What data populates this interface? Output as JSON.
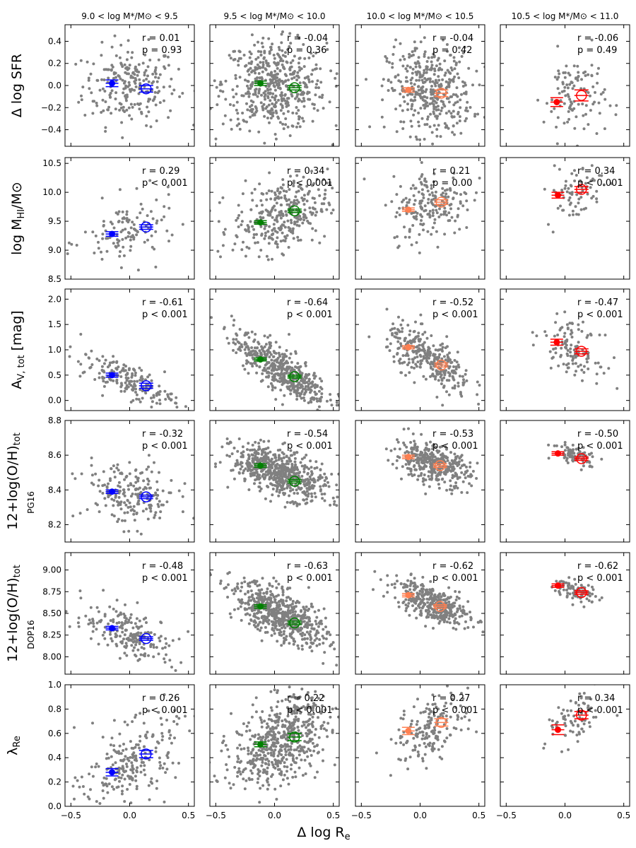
{
  "chart_data": {
    "type": "scatter",
    "xlabel": "Δ log R",
    "xlabel_sub": "e",
    "xlim": [
      -0.55,
      0.55
    ],
    "xticks": [
      -0.5,
      0.0,
      0.5
    ],
    "xtick_labels": [
      "−0.5",
      "0.0",
      "0.5"
    ],
    "column_titles": [
      "9.0 < log M*/M⊙ < 9.5",
      "9.5 < log M*/M⊙ < 10.0",
      "10.0 < log M*/M⊙ < 10.5",
      "10.5 < log M*/M⊙ < 11.0"
    ],
    "column_colors": [
      "#0000ff",
      "#008000",
      "#ff7f50",
      "#ff0000"
    ],
    "point_color": "#808080",
    "rows": [
      {
        "ylabel": "Δ log SFR",
        "ylim": [
          -0.55,
          0.55
        ],
        "yticks": [
          -0.4,
          -0.2,
          0.0,
          0.2,
          0.4
        ],
        "ytick_labels": [
          "−0.4",
          "−0.2",
          "0.0",
          "0.2",
          "0.4"
        ],
        "panels": [
          {
            "r": "r = 0.01",
            "p": "p = 0.93",
            "n": 230,
            "slope": 0.0,
            "cx": 0.0,
            "cy": 0.0,
            "xsd": 0.2,
            "ysd": 0.18,
            "filled": [
              -0.15,
              0.02
            ],
            "open": [
              0.14,
              -0.03
            ],
            "err": [
              0.03,
              0.03
            ]
          },
          {
            "r": "r = -0.04",
            "p": "p = 0.36",
            "n": 500,
            "slope": -0.05,
            "cx": 0.0,
            "cy": 0.0,
            "xsd": 0.22,
            "ysd": 0.2,
            "filled": [
              -0.12,
              0.02
            ],
            "open": [
              0.17,
              -0.02
            ],
            "err": [
              0.02,
              0.02
            ]
          },
          {
            "r": "r = -0.04",
            "p": "p = 0.42",
            "n": 400,
            "slope": -0.05,
            "cx": 0.08,
            "cy": -0.05,
            "xsd": 0.18,
            "ysd": 0.2,
            "filled": [
              -0.1,
              -0.04
            ],
            "open": [
              0.18,
              -0.07
            ],
            "err": [
              0.02,
              0.03
            ]
          },
          {
            "r": "r = -0.06",
            "p": "p = 0.49",
            "n": 110,
            "slope": -0.05,
            "cx": 0.08,
            "cy": -0.1,
            "xsd": 0.13,
            "ysd": 0.2,
            "filled": [
              -0.07,
              -0.15
            ],
            "open": [
              0.14,
              -0.09
            ],
            "err": [
              0.04,
              0.05
            ]
          }
        ]
      },
      {
        "ylabel": "log M",
        "ylabel_sub": "HI",
        "ylabel_suffix": "/M⊙",
        "ylim": [
          8.5,
          10.6
        ],
        "yticks": [
          8.5,
          9.0,
          9.5,
          10.0,
          10.5
        ],
        "ytick_labels": [
          "8.5",
          "9.0",
          "9.5",
          "10.0",
          "10.5"
        ],
        "panels": [
          {
            "r": "r = 0.29",
            "p": "p < 0.001",
            "n": 120,
            "slope": 0.4,
            "cx": 0.0,
            "cy": 9.32,
            "xsd": 0.2,
            "ysd": 0.28,
            "filled": [
              -0.15,
              9.28
            ],
            "open": [
              0.14,
              9.4
            ],
            "err": [
              0.04,
              0.04
            ]
          },
          {
            "r": "r = 0.34",
            "p": "p < 0.001",
            "n": 330,
            "slope": 0.5,
            "cx": 0.05,
            "cy": 9.6,
            "xsd": 0.2,
            "ysd": 0.3,
            "filled": [
              -0.12,
              9.48
            ],
            "open": [
              0.17,
              9.68
            ],
            "err": [
              0.03,
              0.03
            ]
          },
          {
            "r": "r = 0.21",
            "p": "p = 0.00",
            "n": 200,
            "slope": 0.35,
            "cx": 0.1,
            "cy": 9.8,
            "xsd": 0.17,
            "ysd": 0.3,
            "filled": [
              -0.1,
              9.7
            ],
            "open": [
              0.18,
              9.83
            ],
            "err": [
              0.03,
              0.04
            ]
          },
          {
            "r": "r = 0.34",
            "p": "p < 0.001",
            "n": 75,
            "slope": 0.5,
            "cx": 0.08,
            "cy": 10.0,
            "xsd": 0.12,
            "ysd": 0.25,
            "filled": [
              -0.06,
              9.95
            ],
            "open": [
              0.14,
              10.05
            ],
            "err": [
              0.05,
              0.05
            ]
          }
        ]
      },
      {
        "ylabel": "A",
        "ylabel_sub": "V, tot",
        "ylabel_suffix": " [mag]",
        "ylim": [
          -0.2,
          2.2
        ],
        "yticks": [
          0.0,
          0.5,
          1.0,
          1.5,
          2.0
        ],
        "ytick_labels": [
          "0.0",
          "0.5",
          "1.0",
          "1.5",
          "2.0"
        ],
        "panels": [
          {
            "r": "r = -0.61",
            "p": "p < 0.001",
            "n": 180,
            "slope": -0.85,
            "cx": -0.02,
            "cy": 0.4,
            "xsd": 0.2,
            "ysd": 0.16,
            "filled": [
              -0.15,
              0.5
            ],
            "open": [
              0.14,
              0.29
            ],
            "err": [
              0.04,
              0.05
            ]
          },
          {
            "r": "r = -0.64",
            "p": "p < 0.001",
            "n": 500,
            "slope": -1.4,
            "cx": 0.05,
            "cy": 0.62,
            "xsd": 0.2,
            "ysd": 0.22,
            "filled": [
              -0.12,
              0.81
            ],
            "open": [
              0.17,
              0.47
            ],
            "err": [
              0.03,
              0.03
            ]
          },
          {
            "r": "r = -0.52",
            "p": "p < 0.001",
            "n": 320,
            "slope": -1.3,
            "cx": 0.08,
            "cy": 0.8,
            "xsd": 0.18,
            "ysd": 0.24,
            "filled": [
              -0.1,
              1.05
            ],
            "open": [
              0.18,
              0.7
            ],
            "err": [
              0.03,
              0.04
            ]
          },
          {
            "r": "r = -0.47",
            "p": "p < 0.001",
            "n": 120,
            "slope": -1.0,
            "cx": 0.06,
            "cy": 1.05,
            "xsd": 0.12,
            "ysd": 0.25,
            "filled": [
              -0.07,
              1.15
            ],
            "open": [
              0.14,
              0.97
            ],
            "err": [
              0.06,
              0.05
            ]
          }
        ]
      },
      {
        "ylabel": "12+log(O/H)",
        "ylabel_sub": "tot",
        "ylabel2": "PG16",
        "ylim": [
          8.1,
          8.8
        ],
        "yticks": [
          8.2,
          8.4,
          8.6,
          8.8
        ],
        "ytick_labels": [
          "8.2",
          "8.4",
          "8.6",
          "8.8"
        ],
        "panels": [
          {
            "r": "r = -0.32",
            "p": "p < 0.001",
            "n": 200,
            "slope": -0.12,
            "cx": 0.0,
            "cy": 8.37,
            "xsd": 0.2,
            "ysd": 0.09,
            "filled": [
              -0.15,
              8.39
            ],
            "open": [
              0.14,
              8.36
            ],
            "err": [
              0.01,
              0.01
            ]
          },
          {
            "r": "r = -0.54",
            "p": "p < 0.001",
            "n": 600,
            "slope": -0.2,
            "cx": 0.05,
            "cy": 8.5,
            "xsd": 0.2,
            "ysd": 0.065,
            "filled": [
              -0.12,
              8.54
            ],
            "open": [
              0.17,
              8.45
            ],
            "err": [
              0.01,
              0.01
            ]
          },
          {
            "r": "r = -0.53",
            "p": "p < 0.001",
            "n": 380,
            "slope": -0.18,
            "cx": 0.1,
            "cy": 8.55,
            "xsd": 0.16,
            "ysd": 0.055,
            "filled": [
              -0.1,
              8.59
            ],
            "open": [
              0.17,
              8.54
            ],
            "err": [
              0.01,
              0.01
            ]
          },
          {
            "r": "r = -0.50",
            "p": "p < 0.001",
            "n": 90,
            "slope": -0.15,
            "cx": 0.1,
            "cy": 8.6,
            "xsd": 0.1,
            "ysd": 0.03,
            "filled": [
              -0.06,
              8.61
            ],
            "open": [
              0.14,
              8.58
            ],
            "err": [
              0.01,
              0.01
            ]
          }
        ]
      },
      {
        "ylabel": "12+log(O/H)",
        "ylabel_sub": "tot",
        "ylabel2": "DOP16",
        "ylim": [
          7.8,
          9.2
        ],
        "yticks": [
          8.0,
          8.25,
          8.5,
          8.75,
          9.0
        ],
        "ytick_labels": [
          "8.00",
          "8.25",
          "8.50",
          "8.75",
          "9.00"
        ],
        "panels": [
          {
            "r": "r = -0.48",
            "p": "p < 0.001",
            "n": 200,
            "slope": -0.45,
            "cx": 0.0,
            "cy": 8.27,
            "xsd": 0.2,
            "ysd": 0.14,
            "filled": [
              -0.15,
              8.33
            ],
            "open": [
              0.14,
              8.21
            ],
            "err": [
              0.02,
              0.02
            ]
          },
          {
            "r": "r = -0.63",
            "p": "p < 0.001",
            "n": 600,
            "slope": -0.6,
            "cx": 0.05,
            "cy": 8.48,
            "xsd": 0.2,
            "ysd": 0.14,
            "filled": [
              -0.12,
              8.58
            ],
            "open": [
              0.17,
              8.39
            ],
            "err": [
              0.02,
              0.02
            ]
          },
          {
            "r": "r = -0.62",
            "p": "p < 0.001",
            "n": 380,
            "slope": -0.5,
            "cx": 0.1,
            "cy": 8.62,
            "xsd": 0.16,
            "ysd": 0.1,
            "filled": [
              -0.1,
              8.71
            ],
            "open": [
              0.17,
              8.58
            ],
            "err": [
              0.02,
              0.02
            ]
          },
          {
            "r": "r = -0.62",
            "p": "p < 0.001",
            "n": 90,
            "slope": -0.4,
            "cx": 0.1,
            "cy": 8.75,
            "xsd": 0.1,
            "ysd": 0.06,
            "filled": [
              -0.06,
              8.82
            ],
            "open": [
              0.14,
              8.74
            ],
            "err": [
              0.02,
              0.02
            ]
          }
        ]
      },
      {
        "ylabel": "λ",
        "ylabel_sub": "Re",
        "ylim": [
          0.0,
          1.0
        ],
        "yticks": [
          0.0,
          0.2,
          0.4,
          0.6,
          0.8,
          1.0
        ],
        "ytick_labels": [
          "0.0",
          "0.2",
          "0.4",
          "0.6",
          "0.8",
          "1.0"
        ],
        "panels": [
          {
            "r": "r = 0.26",
            "p": "p < 0.001",
            "n": 230,
            "slope": 0.45,
            "cx": 0.0,
            "cy": 0.35,
            "xsd": 0.2,
            "ysd": 0.16,
            "filled": [
              -0.15,
              0.28
            ],
            "open": [
              0.14,
              0.43
            ],
            "err": [
              0.03,
              0.03
            ]
          },
          {
            "r": "r = 0.22",
            "p": "p < 0.001",
            "n": 560,
            "slope": 0.4,
            "cx": 0.05,
            "cy": 0.54,
            "xsd": 0.2,
            "ysd": 0.17,
            "filled": [
              -0.12,
              0.51
            ],
            "open": [
              0.17,
              0.57
            ],
            "err": [
              0.02,
              0.03
            ]
          },
          {
            "r": "r = 0.27",
            "p": "p < 0.001",
            "n": 180,
            "slope": 0.5,
            "cx": 0.1,
            "cy": 0.65,
            "xsd": 0.16,
            "ysd": 0.13,
            "filled": [
              -0.1,
              0.62
            ],
            "open": [
              0.18,
              0.69
            ],
            "err": [
              0.03,
              0.03
            ]
          },
          {
            "r": "r = 0.34",
            "p": "p < 0.001",
            "n": 75,
            "slope": 0.5,
            "cx": 0.08,
            "cy": 0.7,
            "xsd": 0.12,
            "ysd": 0.1,
            "filled": [
              -0.06,
              0.63
            ],
            "open": [
              0.14,
              0.75
            ],
            "err": [
              0.04,
              0.03
            ]
          }
        ]
      }
    ]
  }
}
